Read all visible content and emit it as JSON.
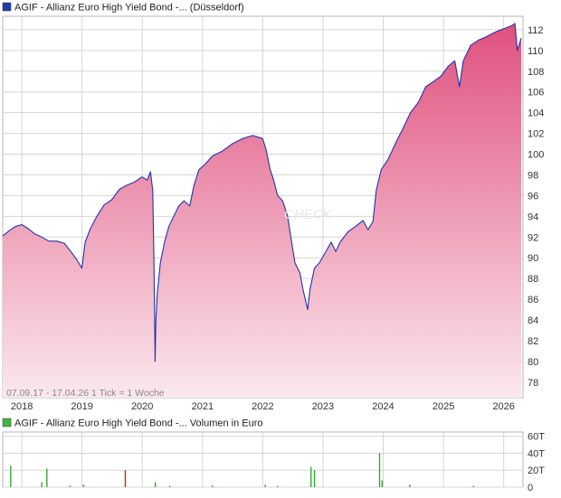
{
  "price_panel": {
    "legend_label": "AGIF - Allianz Euro High Yield Bond -... (Düsseldorf)",
    "legend_color": "#1f3fa8",
    "footer_text": "07.09.17 - 17.04.26   1 Tick = 1 Woche",
    "watermark": "CHECK"
  },
  "volume_panel": {
    "legend_label": "AGIF - Allianz Euro High Yield Bond -... Volumen in Euro",
    "legend_color": "#44b544"
  },
  "colors": {
    "line": "#2233aa",
    "area_top": "#e0507e",
    "area_bottom": "#fbe8ee",
    "grid": "#d5d5d5",
    "volume_up": "#33aa33",
    "volume_down": "#cc2222"
  },
  "chart_data": [
    {
      "type": "area",
      "title": "AGIF - Allianz Euro High Yield Bond -... (Düsseldorf)",
      "x_ticks": [
        "2018",
        "2019",
        "2020",
        "2021",
        "2022",
        "2023",
        "2024",
        "2025",
        "2026"
      ],
      "y_ticks": [
        78,
        80,
        82,
        84,
        86,
        88,
        90,
        92,
        94,
        96,
        98,
        100,
        102,
        104,
        106,
        108,
        110,
        112
      ],
      "ylim": [
        76.5,
        113.3
      ],
      "xlim": [
        "2017-09-07",
        "2026-04-17"
      ],
      "grid": true,
      "x": [
        "2017-09-07",
        "2017-10-15",
        "2017-11-20",
        "2018-01-01",
        "2018-02-10",
        "2018-03-20",
        "2018-05-01",
        "2018-06-15",
        "2018-08-01",
        "2018-09-15",
        "2018-10-25",
        "2018-12-01",
        "2018-12-31",
        "2019-01-20",
        "2019-02-20",
        "2019-04-01",
        "2019-05-15",
        "2019-06-30",
        "2019-08-15",
        "2019-09-30",
        "2019-11-15",
        "2019-12-31",
        "2020-01-31",
        "2020-02-20",
        "2020-03-05",
        "2020-03-12",
        "2020-03-19",
        "2020-03-24",
        "2020-04-01",
        "2020-04-20",
        "2020-05-15",
        "2020-06-10",
        "2020-07-10",
        "2020-08-10",
        "2020-09-10",
        "2020-10-15",
        "2020-11-10",
        "2020-12-10",
        "2021-01-15",
        "2021-03-01",
        "2021-05-01",
        "2021-07-01",
        "2021-09-01",
        "2021-11-01",
        "2021-12-31",
        "2022-01-20",
        "2022-02-15",
        "2022-03-08",
        "2022-04-01",
        "2022-05-01",
        "2022-06-01",
        "2022-06-30",
        "2022-07-15",
        "2022-08-15",
        "2022-09-01",
        "2022-09-30",
        "2022-10-15",
        "2022-11-10",
        "2022-12-10",
        "2023-01-15",
        "2023-02-20",
        "2023-03-20",
        "2023-04-15",
        "2023-06-01",
        "2023-07-15",
        "2023-09-01",
        "2023-10-01",
        "2023-10-31",
        "2023-11-20",
        "2023-12-20",
        "2024-01-31",
        "2024-03-15",
        "2024-05-01",
        "2024-06-15",
        "2024-08-01",
        "2024-09-15",
        "2024-11-01",
        "2024-12-15",
        "2025-01-31",
        "2025-03-10",
        "2025-04-08",
        "2025-05-01",
        "2025-06-15",
        "2025-08-01",
        "2025-09-15",
        "2025-11-01",
        "2025-12-15",
        "2026-01-20",
        "2026-02-20",
        "2026-03-10",
        "2026-03-25",
        "2026-04-17"
      ],
      "y": [
        92.1,
        92.6,
        93.0,
        93.2,
        92.8,
        92.3,
        92.0,
        91.6,
        91.6,
        91.4,
        90.6,
        89.8,
        89.0,
        91.5,
        92.8,
        94.0,
        95.1,
        95.6,
        96.6,
        97.0,
        97.3,
        97.8,
        97.5,
        98.3,
        96.5,
        90.0,
        80.0,
        84.0,
        86.5,
        89.5,
        91.5,
        93.0,
        94.0,
        95.0,
        95.5,
        95.0,
        97.0,
        98.5,
        99.0,
        99.8,
        100.3,
        101.0,
        101.5,
        101.8,
        101.5,
        100.5,
        98.5,
        97.5,
        96.0,
        95.5,
        94.0,
        91.0,
        89.5,
        88.5,
        87.0,
        85.0,
        87.0,
        89.0,
        89.5,
        90.5,
        91.5,
        90.6,
        91.5,
        92.5,
        93.0,
        93.6,
        92.7,
        93.5,
        96.5,
        98.5,
        99.5,
        101.0,
        102.5,
        104.0,
        105.0,
        106.5,
        107.0,
        107.5,
        108.5,
        109.0,
        106.5,
        109.0,
        110.5,
        111.0,
        111.3,
        111.7,
        112.0,
        112.2,
        112.4,
        112.6,
        110.0,
        111.2
      ]
    },
    {
      "type": "bar",
      "title": "AGIF - Allianz Euro High Yield Bond -... Volumen in Euro",
      "y_ticks": [
        "0",
        "20T",
        "40T",
        "60T"
      ],
      "ylim": [
        0,
        65000
      ],
      "x": [
        "2017-10-25",
        "2018-05-01",
        "2018-06-01",
        "2018-10-20",
        "2019-01-10",
        "2019-09-20",
        "2020-03-20",
        "2020-06-15",
        "2021-03-01",
        "2022-01-15",
        "2022-04-01",
        "2022-10-20",
        "2022-11-10",
        "2023-12-10",
        "2023-12-25",
        "2024-06-10",
        "2025-07-01"
      ],
      "values": [
        25000,
        6000,
        22000,
        2000,
        3000,
        20000,
        6000,
        1500,
        2000,
        3000,
        1500,
        24000,
        20000,
        40000,
        8000,
        3000,
        1500
      ],
      "direction": [
        "up",
        "up",
        "up",
        "up",
        "up",
        "down",
        "up",
        "up",
        "up",
        "up",
        "up",
        "up",
        "up",
        "up",
        "up",
        "up",
        "up"
      ]
    }
  ]
}
